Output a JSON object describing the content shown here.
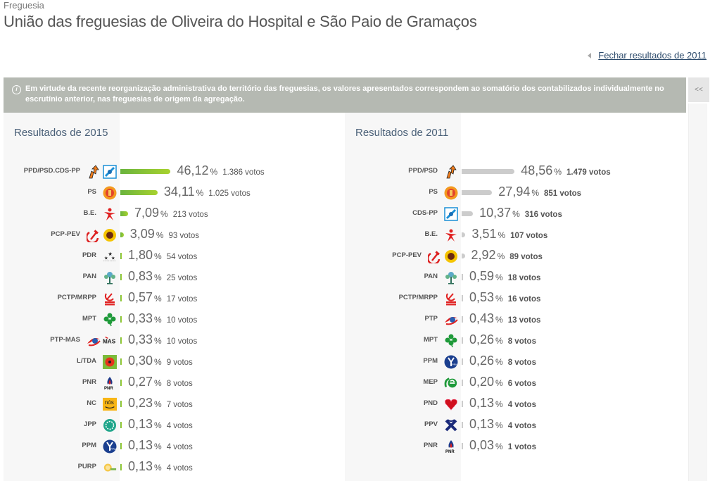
{
  "header": {
    "kicker": "Freguesia",
    "title": "União das freguesias de Oliveira do Hospital e São Paio de Gramaços"
  },
  "close_link": "Fechar resultados de 2011",
  "notice": {
    "icon": "info-icon",
    "text": "Em virtude da recente reorganização administrativa do território das freguesias, os valores apresentados correspondem ao somatório dos contabilizados individualmente no escrutínio anterior, nas freguesias de origem da agregação."
  },
  "side_toggle": "<<",
  "colors": {
    "bar_2015_start": "#6ab43e",
    "bar_2015_end": "#a8d22e",
    "bar_2011": "#cccccc",
    "notice_bg": "#b5b9b2"
  },
  "chart_data": [
    {
      "type": "bar",
      "orientation": "horizontal",
      "title": "Resultados de 2015",
      "unit": "%",
      "votes_suffix": "votos",
      "xlim": [
        0,
        100
      ],
      "categories": [
        "PPD/PSD.CDS-PP",
        "PS",
        "B.E.",
        "PCP-PEV",
        "PDR",
        "PAN",
        "PCTP/MRPP",
        "MPT",
        "PTP-MAS",
        "L/TDA",
        "PNR",
        "NC",
        "JPP",
        "PPM",
        "PURP"
      ],
      "values": [
        46.12,
        34.11,
        7.09,
        3.09,
        1.8,
        0.83,
        0.57,
        0.33,
        0.33,
        0.3,
        0.27,
        0.23,
        0.13,
        0.13,
        0.13
      ],
      "value_labels": [
        "46,12",
        "34,11",
        "7,09",
        "3,09",
        "1,80",
        "0,83",
        "0,57",
        "0,33",
        "0,33",
        "0,30",
        "0,27",
        "0,23",
        "0,13",
        "0,13",
        "0,13"
      ],
      "votes": [
        "1.386 votos",
        "1.025 votos",
        "213 votos",
        "93 votos",
        "54 votos",
        "25 votos",
        "17 votos",
        "10 votos",
        "10 votos",
        "9 votos",
        "8 votos",
        "7 votos",
        "4 votos",
        "4 votos",
        "4 votos"
      ],
      "logos": [
        [
          "psd-arrow-icon",
          "cds-pp-icon"
        ],
        [
          "ps-fist-icon"
        ],
        [
          "be-star-icon"
        ],
        [
          "hammer-sickle-icon",
          "sunflower-icon"
        ],
        [
          "pdr-stars-icon"
        ],
        [
          "pan-tree-icon"
        ],
        [
          "mrpp-hammer-sickle-icon"
        ],
        [
          "mpt-clover-icon"
        ],
        [
          "ptp-swirl-icon",
          "mas-icon"
        ],
        [
          "livre-poppy-icon"
        ],
        [
          "pnr-flame-icon"
        ],
        [
          "nos-cidadaos-icon"
        ],
        [
          "jpp-icon"
        ],
        [
          "ppm-icon"
        ],
        [
          "purp-sun-icon"
        ]
      ]
    },
    {
      "type": "bar",
      "orientation": "horizontal",
      "title": "Resultados de 2011",
      "unit": "%",
      "votes_suffix": "votos",
      "xlim": [
        0,
        100
      ],
      "categories": [
        "PPD/PSD",
        "PS",
        "CDS-PP",
        "B.E.",
        "PCP-PEV",
        "PAN",
        "PCTP/MRPP",
        "PTP",
        "MPT",
        "PPM",
        "MEP",
        "PND",
        "PPV",
        "PNR"
      ],
      "values": [
        48.56,
        27.94,
        10.37,
        3.51,
        2.92,
        0.59,
        0.53,
        0.43,
        0.26,
        0.26,
        0.2,
        0.13,
        0.13,
        0.03
      ],
      "value_labels": [
        "48,56",
        "27,94",
        "10,37",
        "3,51",
        "2,92",
        "0,59",
        "0,53",
        "0,43",
        "0,26",
        "0,26",
        "0,20",
        "0,13",
        "0,13",
        "0,03"
      ],
      "votes": [
        "1.479 votos",
        "851 votos",
        "316 votos",
        "107 votos",
        "89 votos",
        "18 votos",
        "16 votos",
        "13 votos",
        "8 votos",
        "8 votos",
        "6 votos",
        "4 votos",
        "4 votos",
        "1 votos"
      ],
      "logos": [
        [
          "psd-arrow-icon"
        ],
        [
          "ps-fist-icon"
        ],
        [
          "cds-pp-icon"
        ],
        [
          "be-star-icon"
        ],
        [
          "hammer-sickle-icon",
          "sunflower-icon"
        ],
        [
          "pan-tree-icon"
        ],
        [
          "mrpp-hammer-sickle-icon"
        ],
        [
          "ptp-swirl-icon"
        ],
        [
          "mpt-clover-icon"
        ],
        [
          "ppm-icon"
        ],
        [
          "mep-icon"
        ],
        [
          "pnd-heart-icon"
        ],
        [
          "ppv-cross-icon"
        ],
        [
          "pnr-flame-icon"
        ]
      ]
    }
  ]
}
